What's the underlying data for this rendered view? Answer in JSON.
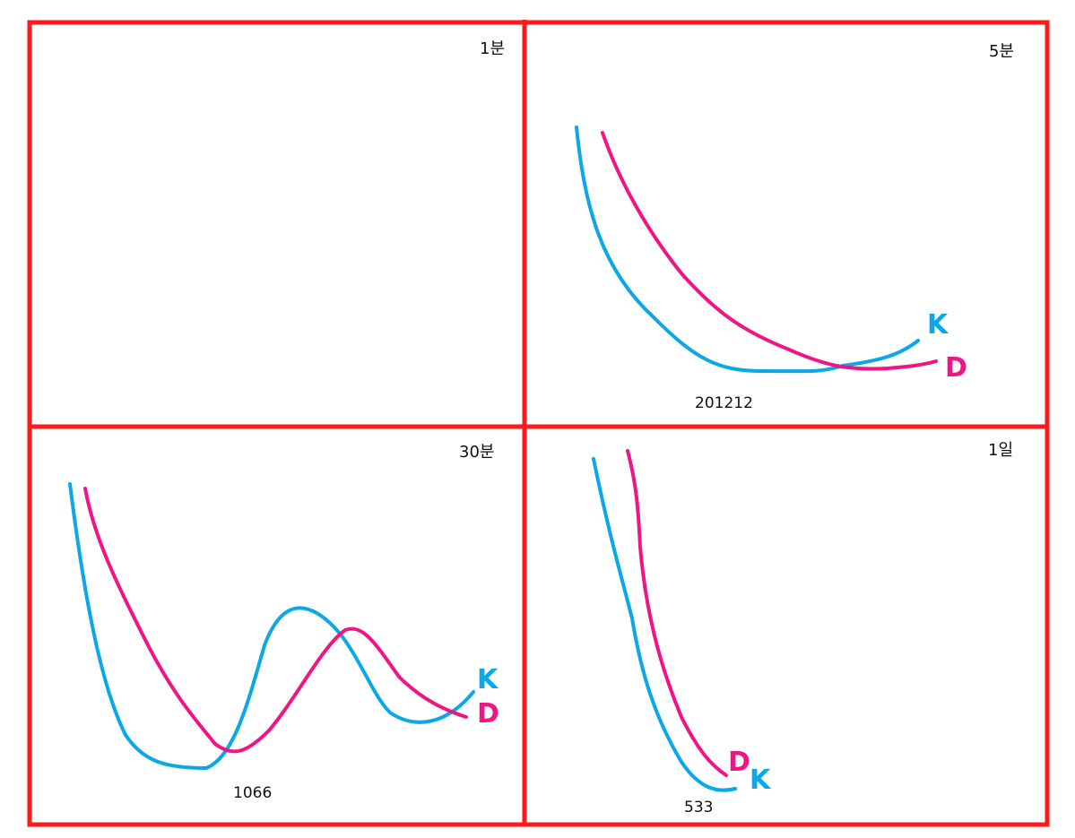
{
  "colors": {
    "frame": "#ff1a1a",
    "k_line": "#0aa8e6",
    "d_line": "#ef1585",
    "text": "#111111"
  },
  "panels": [
    {
      "label": "1분",
      "number": "",
      "k_label": "",
      "d_label": ""
    },
    {
      "label": "5분",
      "number": "201212",
      "k_label": "K",
      "d_label": "D"
    },
    {
      "label": "30분",
      "number": "1066",
      "k_label": "K",
      "d_label": "D"
    },
    {
      "label": "1일",
      "number": "533",
      "k_label": "K",
      "d_label": "D"
    }
  ]
}
